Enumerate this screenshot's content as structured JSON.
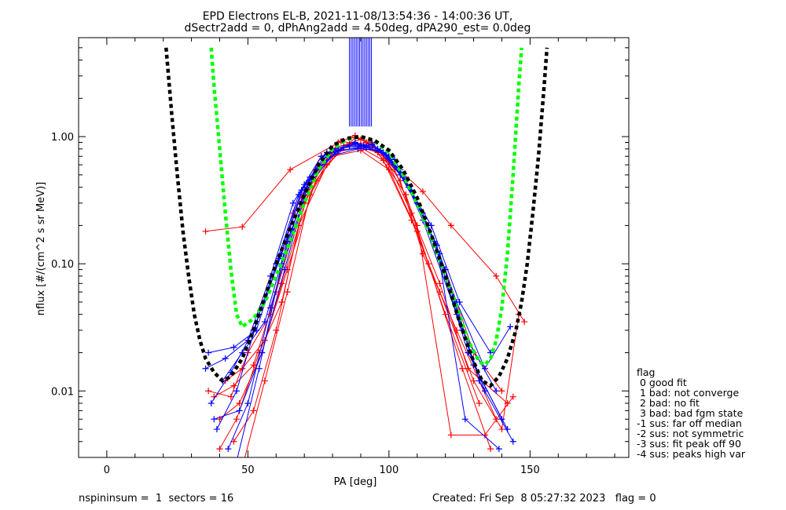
{
  "header": {
    "title_line1": "EPD Electrons EL-B, 2021-11-08/13:54:36 - 14:00:36 UT,",
    "title_line2": "dSectr2add = 0, dPhAng2add = 4.50deg, dPA290_est=    0.0deg"
  },
  "legend": {
    "title": "flag",
    "items": [
      " 0 good fit",
      " 1 bad: not converge",
      " 2 bad: no fit",
      " 3 bad: bad fgm state",
      "-1 sus: far off median",
      "-2 sus: not symmetric",
      "-3 sus: fit peak off 90",
      "-4 sus: peaks high var"
    ]
  },
  "footer": {
    "left": "nspininsum =  1  sectors = 16",
    "right": "Created: Fri Sep  8 05:27:32 2023   flag = 0"
  },
  "colors": {
    "red": "#ff0000",
    "blue": "#0000ff",
    "green": "#00ff00",
    "black": "#000000"
  },
  "chart_data": {
    "type": "line",
    "xlabel": "PA [deg]",
    "ylabel": "nflux [#/(cm^2 s sr MeV)]",
    "xlim": [
      -10,
      185
    ],
    "ylim": [
      0.003,
      6
    ],
    "yscale": "log",
    "xticks": [
      0,
      50,
      100,
      150
    ],
    "xtick_labels": [
      "0",
      "50",
      "100",
      "150"
    ],
    "yticks": [
      0.01,
      0.1,
      1.0
    ],
    "ytick_labels": [
      "0.01",
      "0.10",
      "1.00"
    ],
    "fits": [
      {
        "color": "green",
        "style": "dashed",
        "x": [
          37,
          38,
          40,
          42,
          44,
          46,
          48,
          52,
          56,
          60,
          65,
          70,
          75,
          80,
          85,
          90,
          95,
          100,
          105,
          110,
          115,
          120,
          125,
          128,
          132,
          134,
          136,
          138,
          140,
          142,
          144,
          146,
          147
        ],
        "y": [
          5.0,
          2.5,
          0.8,
          0.25,
          0.09,
          0.04,
          0.032,
          0.037,
          0.05,
          0.08,
          0.15,
          0.3,
          0.55,
          0.8,
          0.95,
          1.0,
          0.92,
          0.75,
          0.5,
          0.3,
          0.16,
          0.08,
          0.04,
          0.025,
          0.017,
          0.016,
          0.018,
          0.025,
          0.045,
          0.12,
          0.5,
          2.5,
          5.0
        ]
      },
      {
        "color": "black",
        "style": "dashed",
        "x": [
          21,
          23,
          25,
          27,
          29,
          31,
          33,
          35,
          38,
          41,
          44,
          48,
          52,
          56,
          60,
          65,
          70,
          75,
          80,
          85,
          90,
          95,
          100,
          105,
          110,
          115,
          120,
          125,
          130,
          133,
          136,
          139,
          142,
          145,
          147,
          149,
          151,
          153,
          155,
          156
        ],
        "y": [
          5.0,
          1.5,
          0.5,
          0.18,
          0.08,
          0.04,
          0.025,
          0.018,
          0.014,
          0.012,
          0.013,
          0.018,
          0.03,
          0.055,
          0.1,
          0.19,
          0.35,
          0.6,
          0.85,
          0.97,
          1.0,
          0.93,
          0.78,
          0.55,
          0.33,
          0.17,
          0.08,
          0.035,
          0.017,
          0.012,
          0.011,
          0.013,
          0.018,
          0.03,
          0.05,
          0.1,
          0.25,
          0.7,
          2.5,
          5.0
        ]
      }
    ],
    "red_series": [
      {
        "x": [
          35,
          48,
          65,
          83,
          92,
          100,
          112,
          122,
          138,
          148
        ],
        "y": [
          0.18,
          0.195,
          0.55,
          0.92,
          0.85,
          0.65,
          0.37,
          0.2,
          0.08,
          0.035
        ]
      },
      {
        "x": [
          38,
          45,
          52,
          60,
          70,
          80,
          90,
          100,
          110,
          120,
          130,
          140
        ],
        "y": [
          0.009,
          0.011,
          0.016,
          0.06,
          0.35,
          0.8,
          0.95,
          0.7,
          0.3,
          0.09,
          0.02,
          0.01
        ]
      },
      {
        "x": [
          40,
          47,
          55,
          62,
          72,
          82,
          88,
          96,
          104,
          112,
          124,
          138
        ],
        "y": [
          0.006,
          0.008,
          0.02,
          0.07,
          0.4,
          0.9,
          1.02,
          0.8,
          0.45,
          0.12,
          0.03,
          0.006
        ]
      },
      {
        "x": [
          42,
          48,
          56,
          64,
          74,
          84,
          92,
          100,
          108,
          118,
          128,
          142
        ],
        "y": [
          0.012,
          0.015,
          0.025,
          0.09,
          0.45,
          0.85,
          0.9,
          0.6,
          0.25,
          0.07,
          0.015,
          0.008
        ]
      },
      {
        "x": [
          45,
          52,
          60,
          68,
          78,
          88,
          94,
          102,
          110,
          122,
          134,
          144
        ],
        "y": [
          0.004,
          0.007,
          0.03,
          0.2,
          0.6,
          0.98,
          0.9,
          0.55,
          0.2,
          0.0045,
          0.0045,
          0.009
        ]
      },
      {
        "x": [
          36,
          44,
          50,
          58,
          66,
          76,
          86,
          96,
          106,
          114,
          126,
          136
        ],
        "y": [
          0.01,
          0.009,
          0.02,
          0.04,
          0.25,
          0.7,
          0.88,
          0.75,
          0.35,
          0.1,
          0.015,
          0.0035
        ]
      },
      {
        "x": [
          40,
          46,
          54,
          62,
          70,
          80,
          90,
          98,
          108,
          118,
          130,
          140,
          146
        ],
        "y": [
          0.0035,
          0.006,
          0.02,
          0.05,
          0.3,
          0.75,
          0.82,
          0.65,
          0.22,
          0.06,
          0.012,
          0.005,
          0.04
        ]
      },
      {
        "x": [
          48,
          56,
          64,
          72,
          80,
          90,
          100,
          110,
          120,
          132
        ],
        "y": [
          0.0025,
          0.012,
          0.06,
          0.35,
          0.7,
          0.78,
          0.55,
          0.18,
          0.04,
          0.008
        ]
      }
    ],
    "blue_series": [
      {
        "x": [
          35,
          42,
          50,
          58,
          66,
          76,
          86,
          94,
          102,
          112,
          124,
          134,
          143
        ],
        "y": [
          0.015,
          0.018,
          0.025,
          0.08,
          0.3,
          0.7,
          0.85,
          0.88,
          0.62,
          0.25,
          0.05,
          0.015,
          0.032
        ]
      },
      {
        "x": [
          37,
          44,
          52,
          60,
          68,
          78,
          88,
          96,
          104,
          114,
          126,
          138
        ],
        "y": [
          0.008,
          0.014,
          0.03,
          0.1,
          0.35,
          0.75,
          0.9,
          0.8,
          0.5,
          0.2,
          0.03,
          0.01
        ]
      },
      {
        "x": [
          39,
          46,
          54,
          62,
          70,
          80,
          90,
          98,
          106,
          116,
          128,
          140
        ],
        "y": [
          0.005,
          0.01,
          0.04,
          0.12,
          0.42,
          0.8,
          0.85,
          0.75,
          0.45,
          0.15,
          0.02,
          0.006
        ]
      },
      {
        "x": [
          41,
          48,
          56,
          64,
          72,
          82,
          92,
          100,
          108,
          118,
          130,
          142
        ],
        "y": [
          0.012,
          0.02,
          0.035,
          0.15,
          0.48,
          0.78,
          0.82,
          0.7,
          0.38,
          0.12,
          0.016,
          0.005
        ]
      },
      {
        "x": [
          43,
          50,
          58,
          66,
          74,
          84,
          94,
          102,
          110,
          120,
          132,
          144
        ],
        "y": [
          0.0035,
          0.008,
          0.045,
          0.18,
          0.55,
          0.82,
          0.86,
          0.66,
          0.3,
          0.09,
          0.012,
          0.004
        ]
      },
      {
        "x": [
          36,
          45,
          53,
          61,
          69,
          79,
          89,
          97,
          105,
          115,
          125,
          136
        ],
        "y": [
          0.02,
          0.022,
          0.03,
          0.11,
          0.38,
          0.7,
          0.8,
          0.78,
          0.48,
          0.2,
          0.05,
          0.02
        ]
      },
      {
        "x": [
          38,
          47,
          55,
          63,
          71,
          81,
          91,
          99,
          107,
          117,
          127,
          139
        ],
        "y": [
          0.006,
          0.007,
          0.02,
          0.09,
          0.4,
          0.76,
          0.84,
          0.72,
          0.4,
          0.14,
          0.006,
          0.0035
        ]
      },
      {
        "x": [
          46,
          54,
          62,
          70,
          78,
          88,
          96,
          104,
          112,
          124,
          134
        ],
        "y": [
          0.0028,
          0.015,
          0.1,
          0.38,
          0.72,
          0.88,
          0.8,
          0.55,
          0.22,
          0.04,
          0.01
        ]
      }
    ]
  }
}
